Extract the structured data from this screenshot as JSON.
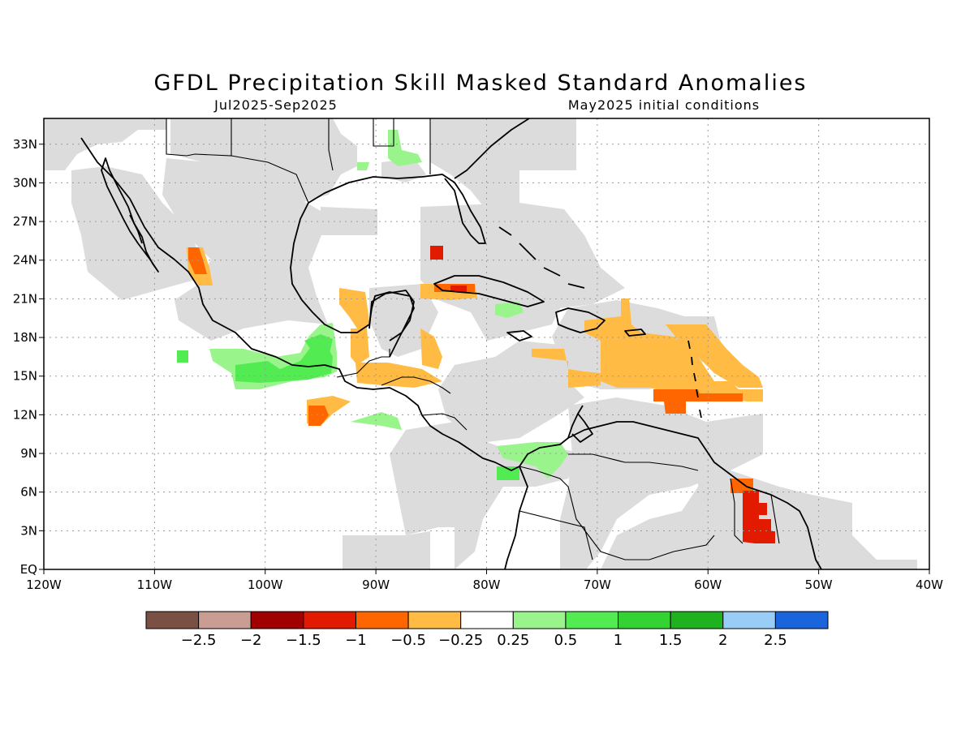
{
  "header": {
    "title": "GFDL Precipitation Skill Masked Standard Anomalies",
    "period": "Jul2025-Sep2025",
    "initial_conditions": "May2025 initial conditions"
  },
  "axes": {
    "lon_labels": [
      "120W",
      "110W",
      "100W",
      "90W",
      "80W",
      "70W",
      "60W",
      "50W",
      "40W"
    ],
    "lat_labels": [
      "EQ",
      "3N",
      "6N",
      "9N",
      "12N",
      "15N",
      "18N",
      "21N",
      "24N",
      "27N",
      "30N",
      "33N"
    ],
    "lon_range": [
      -120,
      -40
    ],
    "lat_range": [
      0,
      35
    ]
  },
  "colorbar": {
    "colors": [
      "#7a5045",
      "#c99d94",
      "#a00000",
      "#e11a00",
      "#ff6600",
      "#ffbb44",
      "#ffffff",
      "#9af48c",
      "#52ec52",
      "#34d334",
      "#1fb21f",
      "#98cdf8",
      "#1a64dc"
    ],
    "tick_labels": [
      "−2.5",
      "−2",
      "−1.5",
      "−1",
      "−0.5",
      "−0.25",
      "0.25",
      "0.5",
      "1",
      "1.5",
      "2",
      "2.5"
    ]
  },
  "map": {
    "masked_color": "#dcdcdc",
    "land_line_color": "#000000"
  }
}
